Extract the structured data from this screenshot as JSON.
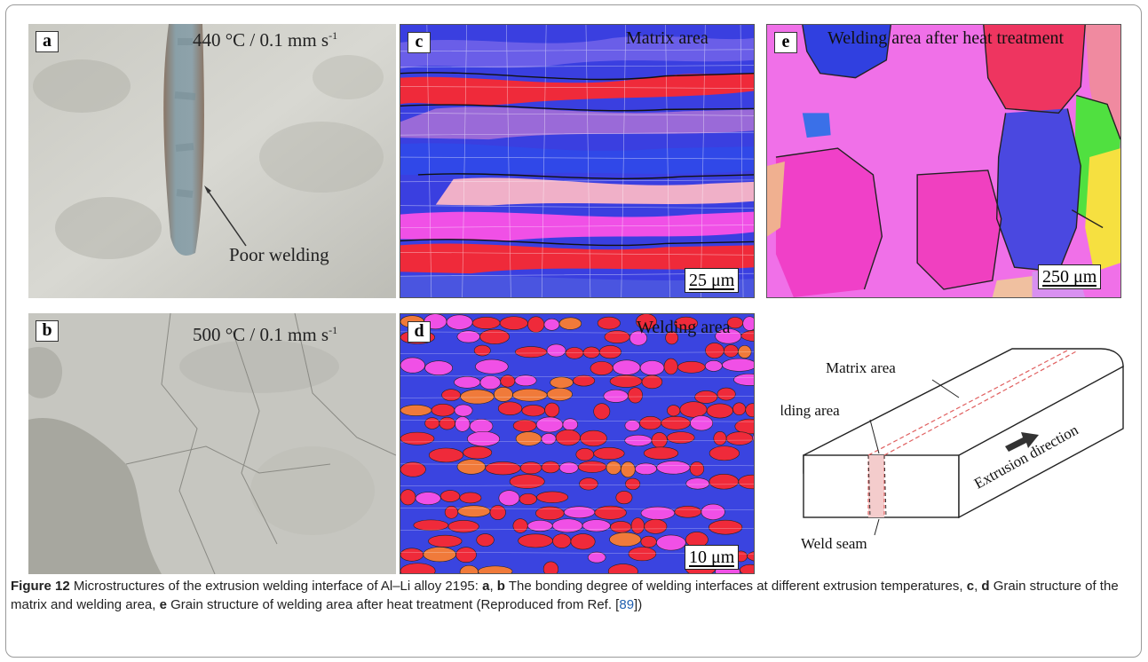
{
  "figure": {
    "panels": {
      "a": {
        "tag": "a",
        "condition": "440 °C / 0.1 mm s",
        "condition_sup": "-1",
        "annotation": "Poor welding"
      },
      "b": {
        "tag": "b",
        "condition": "500 °C / 0.1 mm s",
        "condition_sup": "-1"
      },
      "c": {
        "tag": "c",
        "label": "Matrix area",
        "scale": "25 μm"
      },
      "d": {
        "tag": "d",
        "label": "Welding area",
        "scale": "10 μm"
      },
      "e": {
        "tag": "e",
        "label": "Welding area after heat treatment",
        "scale": "250 μm"
      }
    },
    "schematic": {
      "matrix_label": "Matrix area",
      "welding_label": "Welding area",
      "seam_label": "Weld seam",
      "direction_label": "Extrusion direction"
    },
    "colors": {
      "ipf_blue": "#3a3fe0",
      "ipf_red": "#ef2a3a",
      "ipf_magenta": "#f050e6",
      "seam_red": "#e87b7b"
    },
    "caption": {
      "label": "Figure 12",
      "text1": "  Microstructures of the extrusion welding interface of Al–Li alloy 2195: ",
      "b1": "a",
      "t2": ", ",
      "b2": "b",
      "t3": " The bonding degree of welding interfaces at different extrusion temperatures, ",
      "b3": "c",
      "t4": ", ",
      "b4": "d",
      "t5": " Grain structure of the matrix and welding area, ",
      "b5": "e",
      "t6": " Grain structure of welding area after heat treatment (Reproduced from Ref. [",
      "ref": "89",
      "t7": "])"
    }
  }
}
